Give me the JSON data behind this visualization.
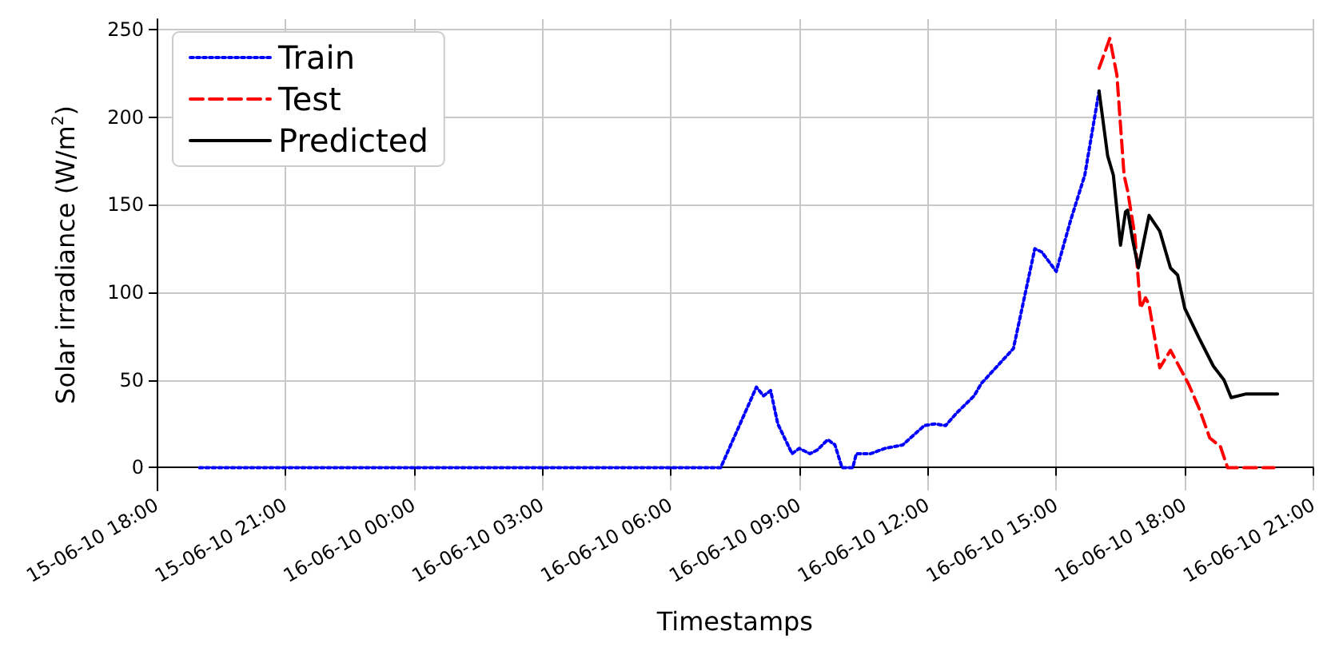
{
  "chart_data": {
    "type": "line",
    "xlabel": "Timestamps",
    "ylabel": "Solar irradiance (W/m$^{2}$)",
    "xlim": [
      "--06-15T18:00",
      "--06-16T21:00"
    ],
    "xticks": [
      {
        "value": "--06-15T18:00",
        "label": "15-06-10 18:00"
      },
      {
        "value": "--06-15T21:00",
        "label": "15-06-10 21:00"
      },
      {
        "value": "--06-16T00:00",
        "label": "16-06-10 00:00"
      },
      {
        "value": "--06-16T03:00",
        "label": "16-06-10 03:00"
      },
      {
        "value": "--06-16T06:00",
        "label": "16-06-10 06:00"
      },
      {
        "value": "--06-16T09:00",
        "label": "16-06-10 09:00"
      },
      {
        "value": "--06-16T12:00",
        "label": "16-06-10 12:00"
      },
      {
        "value": "--06-16T15:00",
        "label": "16-06-10 15:00"
      },
      {
        "value": "--06-16T18:00",
        "label": "16-06-10 18:00"
      },
      {
        "value": "--06-16T21:00",
        "label": "16-06-10 21:00"
      }
    ],
    "ylim": [
      -13,
      256
    ],
    "yticks": [
      0,
      50,
      100,
      150,
      200,
      250
    ],
    "grid": true,
    "legend": "top left",
    "marker": "none",
    "series": [
      {
        "name": "Train",
        "color": "#0000ff",
        "line_style": "dotted",
        "x": [
          "--06-15T19:00",
          "--06-16T07:10",
          "--06-16T08:00",
          "--06-16T08:10",
          "--06-16T08:20",
          "--06-16T08:30",
          "--06-16T08:50",
          "--06-16T09:00",
          "--06-16T09:15",
          "--06-16T09:25",
          "--06-16T09:40",
          "--06-16T09:50",
          "--06-16T10:00",
          "--06-16T10:15",
          "--06-16T10:20",
          "--06-16T10:40",
          "--06-16T11:00",
          "--06-16T11:25",
          "--06-16T11:55",
          "--06-16T12:10",
          "--06-16T12:25",
          "--06-16T12:40",
          "--06-16T13:05",
          "--06-16T13:15",
          "--06-16T14:00",
          "--06-16T14:30",
          "--06-16T14:40",
          "--06-16T15:00",
          "--06-16T15:20",
          "--06-16T15:40",
          "--06-16T16:00"
        ],
        "values": [
          0,
          0,
          46,
          41,
          44,
          25,
          8,
          11,
          8,
          10,
          16,
          13,
          0,
          0,
          8,
          8,
          11,
          13,
          24,
          25,
          24,
          31,
          41,
          48,
          68,
          125,
          123,
          112,
          141,
          167,
          215
        ]
      },
      {
        "name": "Test",
        "color": "#ff0000",
        "line_style": "dashed",
        "x": [
          "--06-16T16:00",
          "--06-16T16:15",
          "--06-16T16:25",
          "--06-16T16:35",
          "--06-16T16:40",
          "--06-16T16:50",
          "--06-16T16:58",
          "--06-16T17:05",
          "--06-16T17:10",
          "--06-16T17:25",
          "--06-16T17:40",
          "--06-16T18:05",
          "--06-16T18:20",
          "--06-16T18:35",
          "--06-16T18:50",
          "--06-16T19:00",
          "--06-16T20:05"
        ],
        "values": [
          228,
          245,
          224,
          167,
          158,
          133,
          91,
          97,
          93,
          57,
          67,
          48,
          34,
          17,
          12,
          0,
          0
        ]
      },
      {
        "name": "Predicted",
        "color": "#000000",
        "line_style": "solid",
        "x": [
          "--06-16T16:00",
          "--06-16T16:12",
          "--06-16T16:20",
          "--06-16T16:30",
          "--06-16T16:37",
          "--06-16T16:40",
          "--06-16T16:47",
          "--06-16T16:55",
          "--06-16T17:10",
          "--06-16T17:25",
          "--06-16T17:40",
          "--06-16T17:50",
          "--06-16T18:00",
          "--06-16T18:20",
          "--06-16T18:40",
          "--06-16T18:55",
          "--06-16T19:05",
          "--06-16T19:25",
          "--06-16T20:10"
        ],
        "values": [
          215,
          178,
          167,
          127,
          146,
          147,
          130,
          114,
          144,
          135,
          114,
          110,
          91,
          74,
          58,
          50,
          40,
          42,
          42
        ]
      }
    ]
  }
}
